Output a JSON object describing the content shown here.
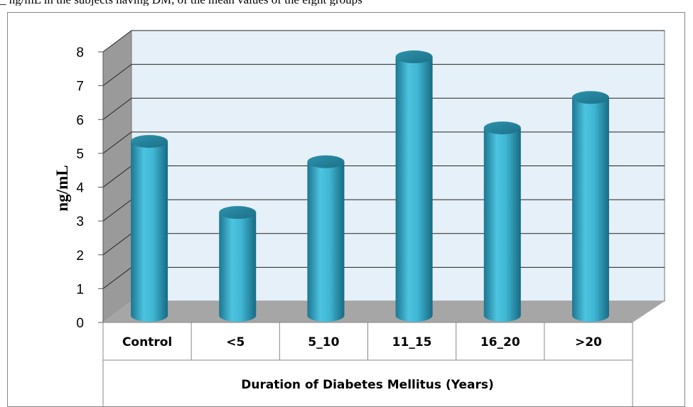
{
  "top_caption": "_ ng/mL in the subjects having DM, of the mean values of the eight groups",
  "chart_data": {
    "type": "bar",
    "style": "3d-cylinder",
    "categories": [
      "Control",
      "<5",
      "5_10",
      "11_15",
      "16_20",
      ">20"
    ],
    "values": [
      5.1,
      3.0,
      4.5,
      7.6,
      5.5,
      6.4
    ],
    "title": "",
    "xlabel": "Duration of Diabetes Mellitus (Years)",
    "ylabel": "ng/mL",
    "ylim": [
      0,
      8
    ],
    "yticks": [
      0,
      1,
      2,
      3,
      4,
      5,
      6,
      7,
      8
    ],
    "grid": true,
    "legend": "none",
    "colors": {
      "bar": "#3fb6d3",
      "bar_dark": "#1f7f97",
      "back_wall": "#e6f0f8",
      "side_wall": "#9a9a9a",
      "floor": "#a6a6a6",
      "gridline": "#000000"
    }
  }
}
